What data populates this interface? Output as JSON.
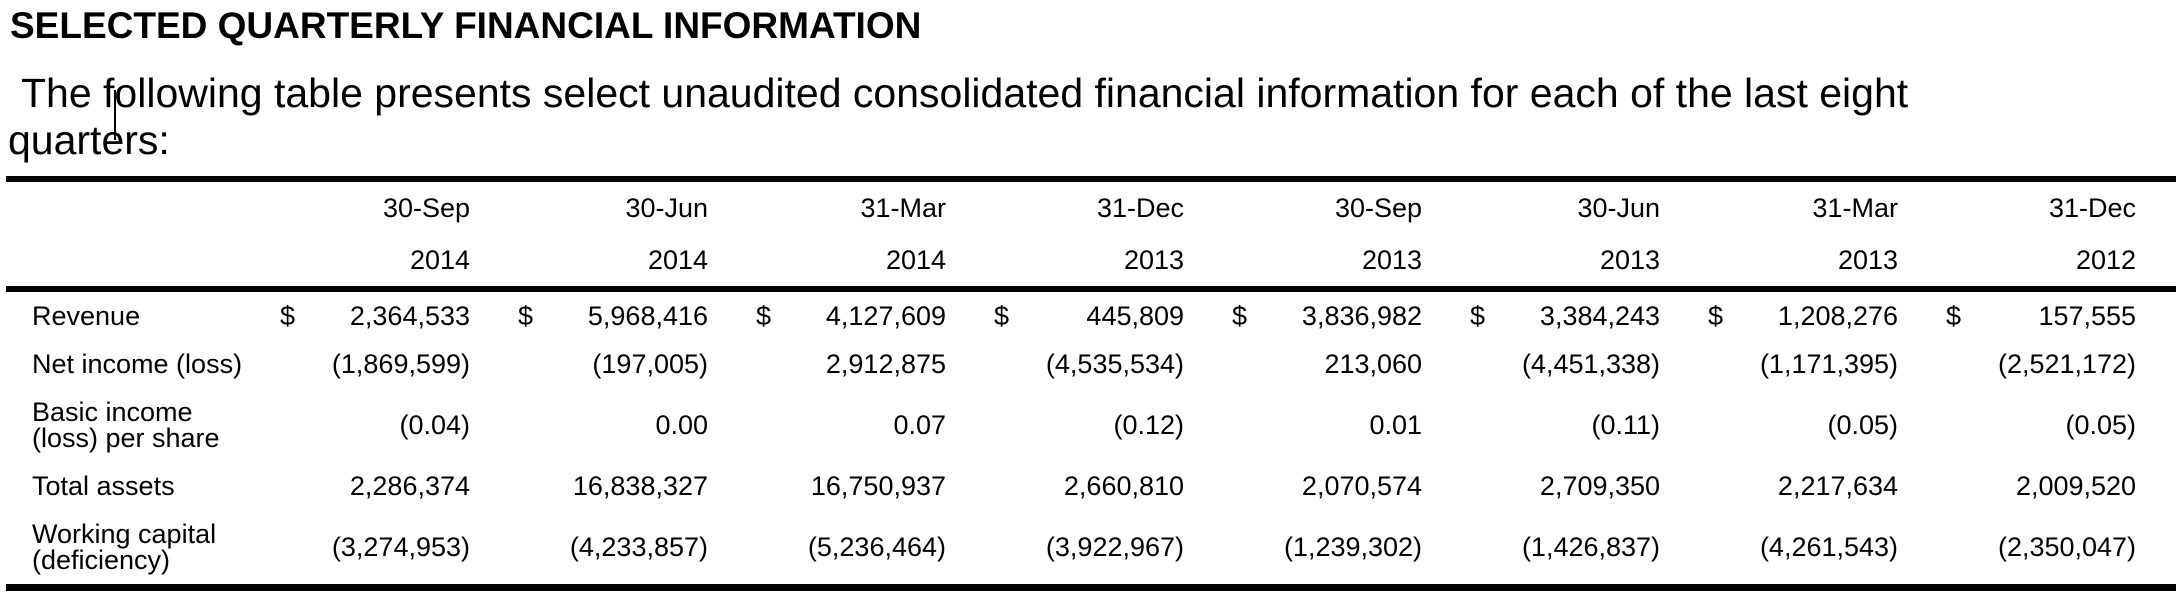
{
  "page": {
    "title": "SELECTED QUARTERLY FINANCIAL INFORMATION",
    "intro": "The following table presents select unaudited consolidated financial information for each of the last eight quarters:"
  },
  "table": {
    "currency_symbol": "$",
    "columns": [
      {
        "date": "30-Sep",
        "year": "2014"
      },
      {
        "date": "30-Jun",
        "year": "2014"
      },
      {
        "date": "31-Mar",
        "year": "2014"
      },
      {
        "date": "31-Dec",
        "year": "2013"
      },
      {
        "date": "30-Sep",
        "year": "2013"
      },
      {
        "date": "30-Jun",
        "year": "2013"
      },
      {
        "date": "31-Mar",
        "year": "2013"
      },
      {
        "date": "31-Dec",
        "year": "2012"
      }
    ],
    "rows": [
      {
        "label_lines": [
          "Revenue"
        ],
        "values": [
          "2,364,533",
          "5,968,416",
          "4,127,609",
          "445,809",
          "3,836,982",
          "3,384,243",
          "1,208,276",
          "157,555"
        ]
      },
      {
        "label_lines": [
          "Net income (loss)"
        ],
        "values": [
          "(1,869,599)",
          "(197,005)",
          "2,912,875",
          "(4,535,534)",
          "213,060",
          "(4,451,338)",
          "(1,171,395)",
          "(2,521,172)"
        ]
      },
      {
        "label_lines": [
          "Basic income",
          "(loss) per share"
        ],
        "values": [
          "(0.04)",
          "0.00",
          "0.07",
          "(0.12)",
          "0.01",
          "(0.11)",
          "(0.05)",
          "(0.05)"
        ]
      },
      {
        "label_lines": [
          "Total assets"
        ],
        "values": [
          "2,286,374",
          "16,838,327",
          "16,750,937",
          "2,660,810",
          "2,070,574",
          "2,709,350",
          "2,217,634",
          "2,009,520"
        ]
      },
      {
        "label_lines": [
          "Working capital",
          "(deficiency)"
        ],
        "values": [
          "(3,274,953)",
          "(4,233,857)",
          "(5,236,464)",
          "(3,922,967)",
          "(1,239,302)",
          "(1,426,837)",
          "(4,261,543)",
          "(2,350,047)"
        ]
      }
    ]
  }
}
